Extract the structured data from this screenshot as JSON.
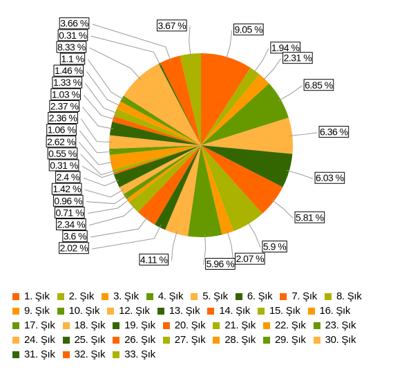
{
  "chart_data": {
    "type": "pie",
    "categories": [
      "1. Şık",
      "2. Şık",
      "3. Şık",
      "4. Şık",
      "5. Şık",
      "6. Şık",
      "7. Şık",
      "8. Şık",
      "9. Şık",
      "10. Şık",
      "12. Şık",
      "13. Şık",
      "14. Şık",
      "15. Şık",
      "16. Şık",
      "17. Şık",
      "18. Şık",
      "19. Şık",
      "20. Şık",
      "21. Şık",
      "22. Şık",
      "23. Şık",
      "24. Şık",
      "25. Şık",
      "26. Şık",
      "27. Şık",
      "28. Şık",
      "29. Şık",
      "30. Şık",
      "31. Şık",
      "32. Şık",
      "33. Şık"
    ],
    "values": [
      9.05,
      1.94,
      2.31,
      6.85,
      6.36,
      6.03,
      5.81,
      5.9,
      2.07,
      5.96,
      4.11,
      2.02,
      3.6,
      2.34,
      0.71,
      0.96,
      1.42,
      2.4,
      0.31,
      0.55,
      2.62,
      1.06,
      2.36,
      2.37,
      1.03,
      1.33,
      1.46,
      1.1,
      8.33,
      0.31,
      3.66,
      3.67
    ],
    "value_labels": [
      "9.05 %",
      "1.94 %",
      "2.31 %",
      "6.85 %",
      "6.36 %",
      "6.03 %",
      "5.81 %",
      "5.9 %",
      "2.07 %",
      "5.96 %",
      "4.11 %",
      "2.02 %",
      "3.6 %",
      "2.34 %",
      "0.71 %",
      "0.96 %",
      "1.42 %",
      "2.4 %",
      "0.31 %",
      "0.55 %",
      "2.62 %",
      "1.06 %",
      "2.36 %",
      "2.37 %",
      "1.03 %",
      "1.33 %",
      "1.46 %",
      "1.1 %",
      "8.33 %",
      "0.31 %",
      "3.66 %",
      "3.67 %"
    ],
    "colors": [
      "#ff6600",
      "#a9b300",
      "#ff9900",
      "#669900",
      "#ffb340",
      "#336600"
    ]
  }
}
